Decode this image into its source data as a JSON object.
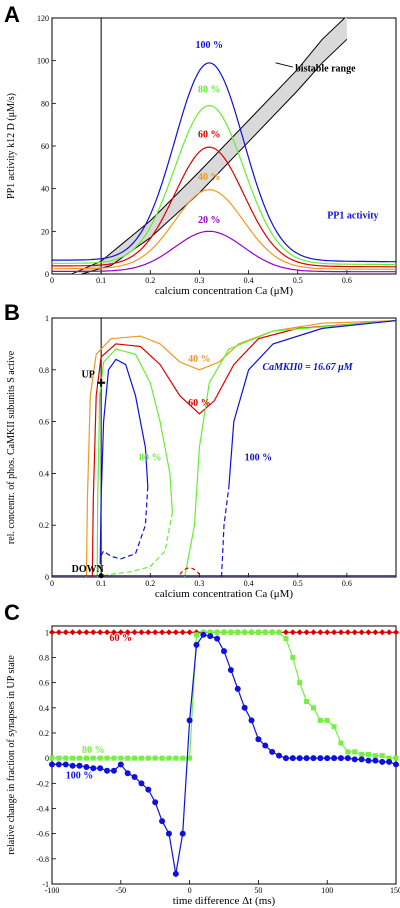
{
  "chart_data": [
    {
      "panel": "A",
      "type": "line",
      "xlabel": "calcium concentration  Ca (μM)",
      "ylabel": "PP1 activity  k12 D  (μM/s)",
      "xlim": [
        0,
        0.7
      ],
      "ylim": [
        0,
        120
      ],
      "xticks": [
        0,
        0.1,
        0.2,
        0.3,
        0.4,
        0.5,
        0.6
      ],
      "yticks": [
        0,
        20,
        40,
        60,
        80,
        100,
        120
      ],
      "vline_x": 0.1,
      "series": [
        {
          "name": "100 %",
          "color": "#1010dd",
          "base": 6.5,
          "peak": 99,
          "center": 0.32,
          "width": 0.07
        },
        {
          "name": "80 %",
          "color": "#66ee33",
          "base": 5,
          "peak": 79,
          "center": 0.32,
          "width": 0.07
        },
        {
          "name": "60 %",
          "color": "#dd0000",
          "base": 3.8,
          "peak": 59.5,
          "center": 0.32,
          "width": 0.07
        },
        {
          "name": "40 %",
          "color": "#ee9922",
          "base": 2.5,
          "peak": 39.5,
          "center": 0.32,
          "width": 0.07
        },
        {
          "name": "20 %",
          "color": "#9900cc",
          "base": 1.2,
          "peak": 20,
          "center": 0.32,
          "width": 0.07
        }
      ],
      "band": {
        "upper": [
          [
            0.04,
            0
          ],
          [
            0.1,
            6
          ],
          [
            0.2,
            25
          ],
          [
            0.3,
            48
          ],
          [
            0.4,
            72
          ],
          [
            0.5,
            96
          ],
          [
            0.55,
            110
          ],
          [
            0.6,
            121
          ]
        ],
        "lower": [
          [
            0.06,
            0
          ],
          [
            0.12,
            4
          ],
          [
            0.2,
            17
          ],
          [
            0.3,
            38
          ],
          [
            0.4,
            62
          ],
          [
            0.5,
            86
          ],
          [
            0.55,
            99
          ],
          [
            0.6,
            110
          ]
        ]
      },
      "annotations": {
        "bistable": "bistable range",
        "pp1": "PP1 activity"
      }
    },
    {
      "panel": "B",
      "type": "line",
      "xlabel": "calcium concentration  Ca (μM)",
      "ylabel": "rel. concentr. of phos. CaMKII subunits  S active",
      "xlim": [
        0,
        0.7
      ],
      "ylim": [
        0,
        1
      ],
      "xticks": [
        0,
        0.1,
        0.2,
        0.3,
        0.4,
        0.5,
        0.6
      ],
      "yticks": [
        0,
        0.2,
        0.4,
        0.6,
        0.8,
        1
      ],
      "vline_x": 0.1,
      "series": [
        {
          "name": "40 %",
          "color": "#ee9922"
        },
        {
          "name": "60 %",
          "color": "#dd0000"
        },
        {
          "name": "80 %",
          "color": "#66ee33"
        },
        {
          "name": "100 %",
          "color": "#1010dd"
        }
      ],
      "annotations": {
        "camkii": "CaMKII0 = 16.67 μM",
        "up": "UP",
        "down": "DOWN"
      }
    },
    {
      "panel": "C",
      "type": "line",
      "xlabel": "time difference Δt (ms)",
      "ylabel": "relative change in fraction of synapses in UP state",
      "xlim": [
        -100,
        150
      ],
      "ylim": [
        -1,
        1.05
      ],
      "xticks": [
        -100,
        -50,
        0,
        50,
        100,
        150
      ],
      "yticks": [
        -1,
        -0.8,
        -0.6,
        -0.4,
        -0.2,
        0,
        0.2,
        0.4,
        0.6,
        0.8,
        1
      ],
      "series": [
        {
          "name": "60 %",
          "color": "#dd0000",
          "x": [
            -100,
            -95,
            -90,
            -85,
            -80,
            -75,
            -70,
            -65,
            -60,
            -55,
            -50,
            -45,
            -40,
            -35,
            -30,
            -25,
            -20,
            -15,
            -10,
            -5,
            0,
            5,
            10,
            15,
            20,
            25,
            30,
            35,
            40,
            45,
            50,
            55,
            60,
            65,
            70,
            75,
            80,
            85,
            90,
            95,
            100,
            105,
            110,
            115,
            120,
            125,
            130,
            135,
            140,
            145,
            150
          ],
          "y": [
            1,
            1,
            1,
            1,
            1,
            1,
            1,
            1,
            1,
            1,
            1,
            1,
            1,
            1,
            1,
            1,
            1,
            1,
            1,
            1,
            1,
            1,
            1,
            1,
            1,
            1,
            1,
            1,
            1,
            1,
            1,
            1,
            1,
            1,
            1,
            1,
            1,
            1,
            1,
            1,
            1,
            1,
            1,
            1,
            1,
            1,
            1,
            1,
            1,
            1,
            1
          ]
        },
        {
          "name": "80 %",
          "color": "#77ee44",
          "x": [
            -100,
            -95,
            -90,
            -85,
            -80,
            -75,
            -70,
            -65,
            -60,
            -55,
            -50,
            -45,
            -40,
            -35,
            -30,
            -25,
            -20,
            -15,
            -10,
            -5,
            0,
            5,
            10,
            15,
            20,
            25,
            30,
            35,
            40,
            45,
            50,
            55,
            60,
            65,
            70,
            75,
            80,
            85,
            90,
            95,
            100,
            105,
            110,
            115,
            120,
            125,
            130,
            135,
            140,
            145,
            150
          ],
          "y": [
            0,
            0,
            0,
            0,
            0,
            0,
            0,
            0,
            0,
            0,
            0,
            0,
            0,
            0,
            0,
            0,
            0,
            0,
            0,
            0,
            0,
            0.98,
            1,
            1,
            1,
            1,
            1,
            1,
            1,
            1,
            1,
            1,
            1,
            1,
            0.95,
            0.8,
            0.6,
            0.45,
            0.4,
            0.3,
            0.3,
            0.25,
            0.12,
            0.05,
            0.05,
            0.03,
            0.03,
            0.02,
            0.02,
            0,
            0
          ]
        },
        {
          "name": "100 %",
          "color": "#1010dd",
          "x": [
            -100,
            -95,
            -90,
            -85,
            -80,
            -75,
            -70,
            -65,
            -60,
            -55,
            -50,
            -45,
            -40,
            -35,
            -30,
            -25,
            -20,
            -15,
            -10,
            -5,
            0,
            5,
            10,
            15,
            20,
            25,
            30,
            35,
            40,
            45,
            50,
            55,
            60,
            65,
            70,
            75,
            80,
            85,
            90,
            95,
            100,
            105,
            110,
            115,
            120,
            125,
            130,
            135,
            140,
            145,
            150
          ],
          "y": [
            -0.05,
            -0.05,
            -0.05,
            -0.06,
            -0.06,
            -0.07,
            -0.08,
            -0.08,
            -0.1,
            -0.1,
            -0.05,
            -0.12,
            -0.15,
            -0.2,
            -0.25,
            -0.35,
            -0.5,
            -0.6,
            -0.92,
            -0.6,
            0.3,
            0.9,
            0.98,
            0.97,
            0.95,
            0.85,
            0.7,
            0.55,
            0.4,
            0.3,
            0.15,
            0.1,
            0.05,
            0.02,
            0,
            0,
            0,
            0,
            0,
            0,
            0,
            0,
            0,
            0,
            -0.01,
            -0.01,
            -0.02,
            -0.02,
            -0.03,
            -0.03,
            -0.05
          ]
        }
      ]
    }
  ],
  "labels": {
    "a": "A",
    "b": "B",
    "c": "C"
  }
}
